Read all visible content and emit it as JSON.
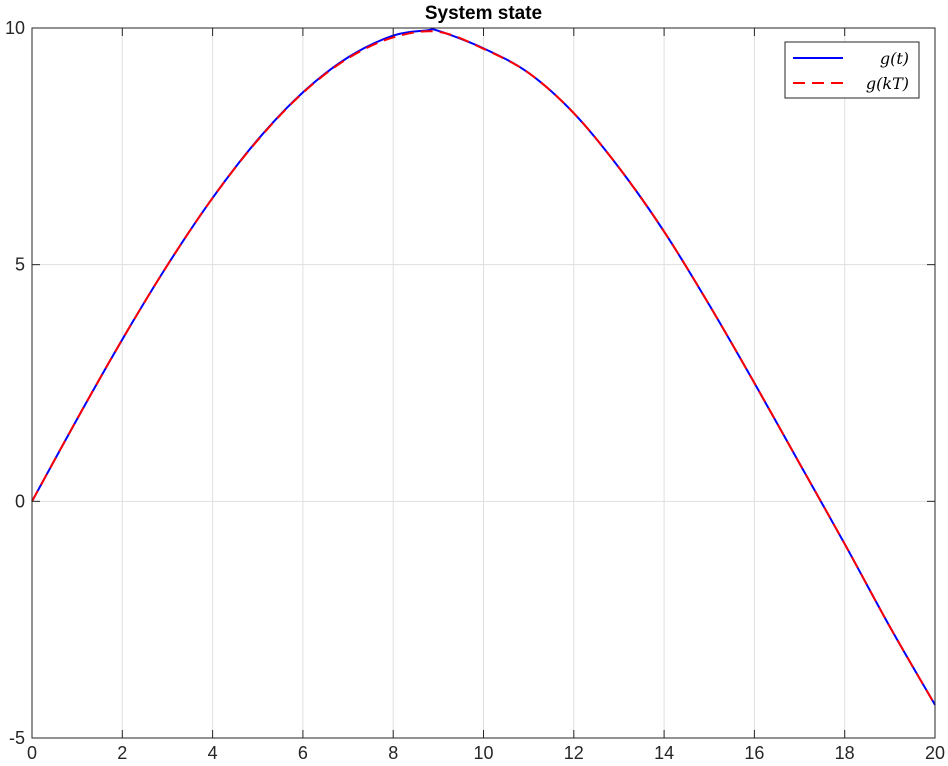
{
  "chart_data": {
    "type": "line",
    "title": "System state",
    "xlabel": "",
    "ylabel": "",
    "xlim": [
      0,
      20
    ],
    "ylim": [
      -5,
      10
    ],
    "xticks": [
      0,
      2,
      4,
      6,
      8,
      10,
      12,
      14,
      16,
      18,
      20
    ],
    "yticks": [
      -5,
      0,
      5,
      10
    ],
    "grid": true,
    "legend_position": "top-right",
    "series": [
      {
        "name": "g(t)",
        "style": "solid",
        "color": "#0000ff",
        "x": [
          0,
          1,
          2,
          3,
          4,
          5,
          6,
          7,
          8,
          8.75,
          9,
          10,
          11,
          12,
          13,
          14,
          15,
          16,
          17,
          18,
          19,
          20
        ],
        "y": [
          0,
          1.74,
          3.42,
          4.99,
          6.41,
          7.64,
          8.64,
          9.38,
          9.84,
          9.95,
          9.94,
          9.57,
          9.05,
          8.2,
          7.05,
          5.7,
          4.15,
          2.5,
          0.8,
          -0.9,
          -2.65,
          -4.3
        ]
      },
      {
        "name": "g(kT)",
        "style": "dashed",
        "color": "#ff0000",
        "x": [
          0,
          1,
          2,
          3,
          4,
          5,
          6,
          7,
          8,
          9,
          10,
          11,
          12,
          13,
          14,
          15,
          16,
          17,
          18,
          19,
          20
        ],
        "y": [
          0,
          1.74,
          3.42,
          4.99,
          6.41,
          7.63,
          8.63,
          9.36,
          9.8,
          9.92,
          9.56,
          9.05,
          8.2,
          7.05,
          5.7,
          4.15,
          2.5,
          0.8,
          -0.9,
          -2.65,
          -4.3
        ]
      }
    ]
  }
}
